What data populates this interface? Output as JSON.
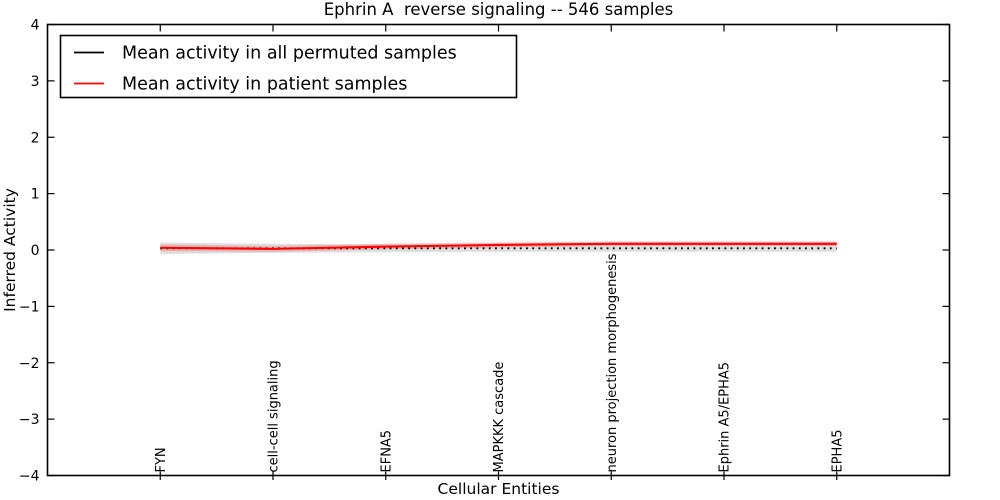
{
  "figure": {
    "title": "Ephrin A  reverse signaling -- 546 samples",
    "xlabel": "Cellular Entities",
    "ylabel": "Inferred Activity"
  },
  "chart_data": {
    "type": "line",
    "title": "Ephrin A  reverse signaling -- 546 samples",
    "xlabel": "Cellular Entities",
    "ylabel": "Inferred Activity",
    "ylim": [
      -4,
      4
    ],
    "yticks": [
      4,
      3,
      2,
      1,
      0,
      -1,
      -2,
      -3,
      -4
    ],
    "ytick_labels": [
      "4",
      "3",
      "2",
      "1",
      "0",
      "−1",
      "−2",
      "−3",
      "−4"
    ],
    "categories": [
      "FYN",
      "cell-cell signaling",
      "EFNA5",
      "MAPKKK cascade",
      "neuron projection morphogenesis",
      "Ephrin A5/EPHA5",
      "EPHA5"
    ],
    "series": [
      {
        "name": "Mean activity in all permuted samples",
        "color": "#000000",
        "linestyle": "dotted",
        "values": [
          0.03,
          0.03,
          0.03,
          0.03,
          0.03,
          0.03,
          0.03
        ]
      },
      {
        "name": "Mean activity in patient samples",
        "color": "#ff0000",
        "linestyle": "solid",
        "values": [
          0.04,
          0.02,
          0.06,
          0.09,
          0.11,
          0.11,
          0.11
        ]
      }
    ],
    "bands": [
      {
        "name": "permuted-samples-range-band",
        "color": "#bfbfbf",
        "opacity": 0.5,
        "center": [
          0.03,
          0.03,
          0.03,
          0.03,
          0.03,
          0.03,
          0.03
        ],
        "halfwidth": [
          0.1,
          0.08,
          0.07,
          0.06,
          0.06,
          0.06,
          0.06
        ]
      },
      {
        "name": "patient-samples-range-band",
        "color": "#f07070",
        "opacity": 0.4,
        "center": [
          0.04,
          0.02,
          0.06,
          0.09,
          0.11,
          0.11,
          0.11
        ],
        "halfwidth": [
          0.06,
          0.05,
          0.05,
          0.045,
          0.04,
          0.04,
          0.04
        ]
      }
    ],
    "legend_position": "upper left",
    "grid": false
  }
}
